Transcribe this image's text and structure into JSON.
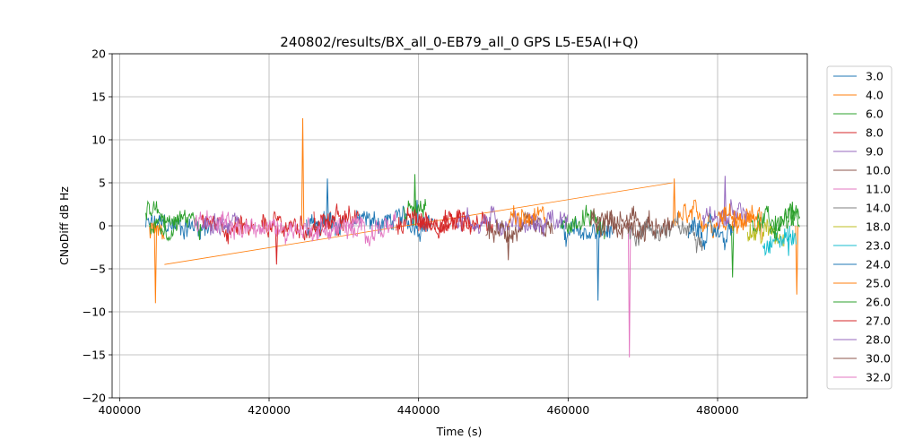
{
  "chart_data": {
    "type": "line",
    "title": "240802/results/BX_all_0-EB79_all_0 GPS L5-E5A(I+Q)",
    "xlabel": "Time (s)",
    "ylabel": "CNoDiff dB Hz",
    "xlim": [
      399000,
      492000
    ],
    "ylim": [
      -20,
      20
    ],
    "x_ticks": [
      400000,
      420000,
      440000,
      460000,
      480000
    ],
    "x_tick_labels": [
      "400000",
      "420000",
      "440000",
      "460000",
      "480000"
    ],
    "y_ticks": [
      -20,
      -15,
      -10,
      -5,
      0,
      5,
      10,
      15,
      20
    ],
    "y_tick_labels": [
      "−20",
      "−15",
      "−10",
      "−5",
      "0",
      "5",
      "10",
      "15",
      "20"
    ],
    "grid": true,
    "legend_position": "outside-right",
    "series": [
      {
        "name": "3.0",
        "color": "#1f77b4",
        "segments": [
          [
            403500,
            412000,
            0.0
          ],
          [
            431000,
            442000,
            0.5
          ],
          [
            459000,
            466000,
            -0.8
          ]
        ],
        "spikes": [
          [
            427800,
            5.5
          ],
          [
            439800,
            3.0
          ],
          [
            464000,
            -8.7
          ]
        ]
      },
      {
        "name": "4.0",
        "color": "#ff7f0e",
        "segments": [
          [
            404000,
            406000,
            -1.5
          ],
          [
            474500,
            486000,
            0.8
          ]
        ],
        "spikes": [
          [
            404800,
            -9.0
          ],
          [
            424500,
            12.5
          ],
          [
            474200,
            5.5
          ],
          [
            490600,
            -8.0
          ]
        ],
        "links": [
          [
            406000,
            -4.5,
            474000,
            5.0
          ]
        ]
      },
      {
        "name": "6.0",
        "color": "#2ca02c",
        "segments": [
          [
            403500,
            411000,
            0.8
          ],
          [
            438000,
            441000,
            1.5
          ],
          [
            459000,
            465000,
            0.6
          ],
          [
            484500,
            491000,
            0.5
          ]
        ],
        "spikes": [
          [
            439500,
            6.0
          ],
          [
            482000,
            -6.0
          ],
          [
            490000,
            2.8
          ]
        ]
      },
      {
        "name": "8.0",
        "color": "#d62728",
        "segments": [
          [
            419000,
            430000,
            0.0
          ],
          [
            437000,
            450000,
            0.5
          ]
        ],
        "spikes": [
          [
            421000,
            -4.5
          ]
        ]
      },
      {
        "name": "9.0",
        "color": "#9467bd",
        "segments": [
          [
            445000,
            456000,
            0.5
          ],
          [
            478000,
            484000,
            1.0
          ]
        ],
        "spikes": [
          [
            481000,
            5.8
          ]
        ]
      },
      {
        "name": "10.0",
        "color": "#8c564b",
        "segments": [
          [
            449000,
            458000,
            -0.8
          ],
          [
            463000,
            471000,
            0.3
          ]
        ],
        "spikes": [
          [
            452000,
            -4.0
          ]
        ]
      },
      {
        "name": "11.0",
        "color": "#e377c2",
        "segments": [
          [
            410000,
            414000,
            0.0
          ],
          [
            430000,
            432000,
            0.0
          ]
        ],
        "spikes": [
          [
            468200,
            -15.3
          ]
        ]
      },
      {
        "name": "14.0",
        "color": "#7f7f7f",
        "segments": [
          [
            468000,
            478000,
            -0.5
          ]
        ],
        "spikes": []
      },
      {
        "name": "18.0",
        "color": "#bcbd22",
        "segments": [
          [
            484000,
            489000,
            -0.8
          ]
        ],
        "spikes": []
      },
      {
        "name": "23.0",
        "color": "#17becf",
        "segments": [
          [
            486000,
            490500,
            -1.5
          ]
        ],
        "spikes": [
          [
            489500,
            -3.5
          ]
        ]
      },
      {
        "name": "24.0",
        "color": "#1f77b4",
        "segments": [
          [
            425000,
            430000,
            0.3
          ],
          [
            476000,
            482000,
            -0.8
          ]
        ],
        "spikes": []
      },
      {
        "name": "25.0",
        "color": "#ff7f0e",
        "segments": [
          [
            452000,
            457000,
            0.6
          ],
          [
            480000,
            486000,
            1.2
          ]
        ],
        "spikes": []
      },
      {
        "name": "26.0",
        "color": "#2ca02c",
        "segments": [
          [
            404000,
            408000,
            0.2
          ],
          [
            487000,
            491000,
            0.6
          ]
        ],
        "spikes": []
      },
      {
        "name": "27.0",
        "color": "#d62728",
        "segments": [
          [
            411000,
            418000,
            0.0
          ],
          [
            426000,
            432000,
            0.5
          ],
          [
            440000,
            447000,
            0.5
          ]
        ],
        "spikes": []
      },
      {
        "name": "28.0",
        "color": "#9467bd",
        "segments": [
          [
            411000,
            416000,
            0.4
          ],
          [
            455000,
            460000,
            0.2
          ]
        ],
        "spikes": []
      },
      {
        "name": "30.0",
        "color": "#8c564b",
        "segments": [
          [
            464000,
            474000,
            0.0
          ]
        ],
        "spikes": []
      },
      {
        "name": "32.0",
        "color": "#e377c2",
        "segments": [
          [
            413000,
            437000,
            -0.3
          ]
        ],
        "spikes": []
      }
    ]
  }
}
